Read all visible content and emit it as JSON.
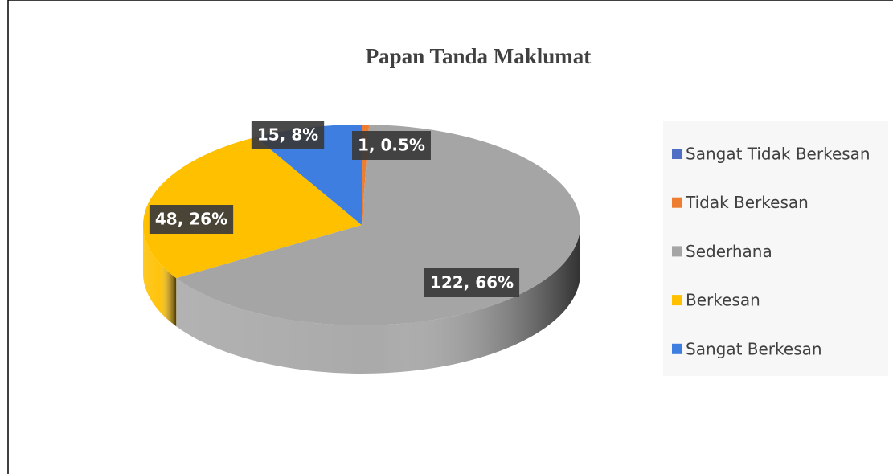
{
  "chart_data": {
    "type": "pie",
    "title": "Papan Tanda Maklumat",
    "categories": [
      "Sangat Tidak Berkesan",
      "Tidak Berkesan",
      "Sederhana",
      "Berkesan",
      "Sangat Berkesan"
    ],
    "values": [
      0,
      1,
      122,
      48,
      15
    ],
    "value_labels": [
      null,
      "1, 0.5%",
      "122, 66%",
      "48, 26%",
      "15, 8%"
    ],
    "colors": [
      "#4f6fc5",
      "#ed7d31",
      "#a5a5a5",
      "#ffc000",
      "#3d7ee0"
    ],
    "legend": "right"
  }
}
